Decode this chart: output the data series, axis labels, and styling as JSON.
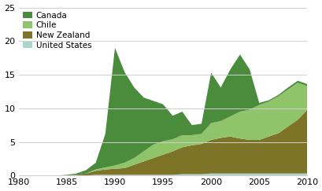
{
  "years": [
    1980,
    1981,
    1982,
    1983,
    1984,
    1985,
    1986,
    1987,
    1988,
    1989,
    1990,
    1991,
    1992,
    1993,
    1994,
    1995,
    1996,
    1997,
    1998,
    1999,
    2000,
    2001,
    2002,
    2003,
    2004,
    2005,
    2006,
    2007,
    2008,
    2009,
    2010
  ],
  "united_states": [
    0,
    0,
    0,
    0,
    0,
    0,
    0,
    0,
    0.1,
    0.1,
    0.1,
    0.1,
    0.1,
    0.1,
    0.1,
    0.1,
    0.1,
    0.2,
    0.2,
    0.2,
    0.3,
    0.3,
    0.3,
    0.3,
    0.3,
    0.3,
    0.3,
    0.3,
    0.3,
    0.3,
    0.3
  ],
  "new_zealand": [
    0,
    0,
    0,
    0,
    0,
    0,
    0.1,
    0.3,
    0.6,
    0.8,
    0.9,
    1.0,
    1.5,
    2.0,
    2.5,
    3.0,
    3.5,
    4.0,
    4.3,
    4.5,
    5.0,
    5.3,
    5.5,
    5.2,
    5.0,
    5.0,
    5.5,
    6.0,
    7.0,
    8.0,
    9.5
  ],
  "chile": [
    0,
    0,
    0,
    0,
    0,
    0,
    0,
    0,
    0.2,
    0.3,
    0.5,
    0.8,
    1.0,
    1.5,
    2.0,
    2.0,
    1.8,
    1.8,
    1.5,
    1.5,
    2.5,
    2.5,
    3.0,
    4.0,
    4.5,
    5.2,
    5.2,
    5.5,
    5.5,
    5.5,
    3.5
  ],
  "canada": [
    0,
    0,
    0,
    0,
    0,
    0.1,
    0.2,
    0.5,
    1.0,
    5.0,
    17.5,
    13.5,
    10.5,
    8.0,
    6.5,
    5.5,
    3.5,
    3.5,
    1.5,
    1.5,
    7.5,
    5.0,
    7.0,
    8.5,
    6.0,
    0.3,
    0.2,
    0.2,
    0.3,
    0.3,
    0.3
  ],
  "colors": {
    "canada": "#4a8c3c",
    "chile": "#90c46a",
    "new_zealand": "#7d7428",
    "united_states": "#aad5cc"
  },
  "xlim": [
    1980,
    2010
  ],
  "ylim": [
    0,
    25
  ],
  "yticks": [
    0,
    5,
    10,
    15,
    20,
    25
  ],
  "xticks": [
    1980,
    1985,
    1990,
    1995,
    2000,
    2005,
    2010
  ],
  "background_color": "#ffffff",
  "grid_color": "#d0d0d0"
}
